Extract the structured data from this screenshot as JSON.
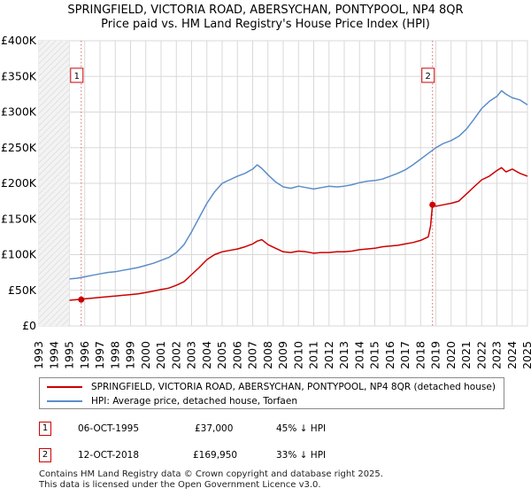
{
  "chart_data": {
    "type": "line",
    "title_line1": "SPRINGFIELD, VICTORIA ROAD, ABERSYCHAN, PONTYPOOL, NP4 8QR",
    "title_line2": "Price paid vs. HM Land Registry's House Price Index (HPI)",
    "xlim": [
      1993,
      2025
    ],
    "ylim": [
      0,
      400000
    ],
    "x_ticks": [
      1993,
      1994,
      1995,
      1996,
      1997,
      1998,
      1999,
      2000,
      2001,
      2002,
      2003,
      2004,
      2005,
      2006,
      2007,
      2008,
      2009,
      2010,
      2011,
      2012,
      2013,
      2014,
      2015,
      2016,
      2017,
      2018,
      2019,
      2020,
      2021,
      2022,
      2023,
      2024,
      2025
    ],
    "y_ticks": [
      {
        "value": 0,
        "label": "£0"
      },
      {
        "value": 50000,
        "label": "£50K"
      },
      {
        "value": 100000,
        "label": "£100K"
      },
      {
        "value": 150000,
        "label": "£150K"
      },
      {
        "value": 200000,
        "label": "£200K"
      },
      {
        "value": 250000,
        "label": "£250K"
      },
      {
        "value": 300000,
        "label": "£300K"
      },
      {
        "value": 350000,
        "label": "£350K"
      },
      {
        "value": 400000,
        "label": "£400K"
      }
    ],
    "grid": true,
    "data_start": 1995.0,
    "series": [
      {
        "name": "SPRINGFIELD, VICTORIA ROAD, ABERSYCHAN, PONTYPOOL, NP4 8QR (detached house)",
        "color": "#cc0000",
        "x": [
          1995.0,
          1995.5,
          1995.77,
          1996.0,
          1996.5,
          1997.0,
          1997.5,
          1998.0,
          1998.5,
          1999.0,
          1999.5,
          2000.0,
          2000.5,
          2001.0,
          2001.5,
          2002.0,
          2002.5,
          2003.0,
          2003.5,
          2004.0,
          2004.5,
          2005.0,
          2005.5,
          2006.0,
          2006.5,
          2007.0,
          2007.3,
          2007.6,
          2008.0,
          2008.5,
          2009.0,
          2009.5,
          2010.0,
          2010.5,
          2011.0,
          2011.5,
          2012.0,
          2012.5,
          2013.0,
          2013.5,
          2014.0,
          2014.5,
          2015.0,
          2015.5,
          2016.0,
          2016.5,
          2017.0,
          2017.5,
          2018.0,
          2018.5,
          2018.65,
          2018.78,
          2019.0,
          2019.5,
          2020.0,
          2020.5,
          2021.0,
          2021.5,
          2022.0,
          2022.5,
          2023.0,
          2023.3,
          2023.6,
          2024.0,
          2024.5,
          2025.0
        ],
        "y": [
          36000,
          37000,
          37000,
          38000,
          39000,
          40000,
          41000,
          42000,
          43000,
          44000,
          45000,
          47000,
          49000,
          51000,
          53000,
          57000,
          62000,
          72000,
          82000,
          93000,
          100000,
          104000,
          106000,
          108000,
          111000,
          115000,
          119000,
          121000,
          114000,
          109000,
          104000,
          103000,
          105000,
          104000,
          102000,
          103000,
          103000,
          104000,
          104000,
          105000,
          107000,
          108000,
          109000,
          111000,
          112000,
          113000,
          115000,
          117000,
          120000,
          125000,
          140000,
          169950,
          168000,
          170000,
          172000,
          175000,
          185000,
          195000,
          205000,
          210000,
          218000,
          222000,
          216000,
          220000,
          214000,
          210000
        ]
      },
      {
        "name": "HPI: Average price, detached house, Torfaen",
        "color": "#5b8dc9",
        "x": [
          1995.0,
          1995.5,
          1996.0,
          1996.5,
          1997.0,
          1997.5,
          1998.0,
          1998.5,
          1999.0,
          1999.5,
          2000.0,
          2000.5,
          2001.0,
          2001.5,
          2002.0,
          2002.5,
          2003.0,
          2003.5,
          2004.0,
          2004.5,
          2005.0,
          2005.5,
          2006.0,
          2006.5,
          2007.0,
          2007.3,
          2007.6,
          2008.0,
          2008.5,
          2009.0,
          2009.5,
          2010.0,
          2010.5,
          2011.0,
          2011.5,
          2012.0,
          2012.5,
          2013.0,
          2013.5,
          2014.0,
          2014.5,
          2015.0,
          2015.5,
          2016.0,
          2016.5,
          2017.0,
          2017.5,
          2018.0,
          2018.5,
          2019.0,
          2019.5,
          2020.0,
          2020.5,
          2021.0,
          2021.5,
          2022.0,
          2022.5,
          2023.0,
          2023.3,
          2023.6,
          2024.0,
          2024.5,
          2025.0
        ],
        "y": [
          66000,
          67000,
          69000,
          71000,
          73000,
          75000,
          76000,
          78000,
          80000,
          82000,
          85000,
          88000,
          92000,
          96000,
          103000,
          114000,
          132000,
          152000,
          172000,
          188000,
          200000,
          205000,
          210000,
          214000,
          220000,
          226000,
          221000,
          212000,
          202000,
          195000,
          193000,
          196000,
          194000,
          192000,
          194000,
          196000,
          195000,
          196000,
          198000,
          201000,
          203000,
          204000,
          206000,
          210000,
          214000,
          219000,
          226000,
          234000,
          242000,
          250000,
          256000,
          260000,
          266000,
          276000,
          290000,
          305000,
          315000,
          322000,
          330000,
          325000,
          320000,
          317000,
          310000
        ]
      }
    ],
    "annotations": [
      {
        "label": "1",
        "x": 1995.77,
        "y": 37000
      },
      {
        "label": "2",
        "x": 2018.78,
        "y": 169950
      }
    ]
  },
  "legend": {
    "items": [
      {
        "label": "SPRINGFIELD, VICTORIA ROAD, ABERSYCHAN, PONTYPOOL, NP4 8QR (detached house)",
        "color": "#cc0000"
      },
      {
        "label": "HPI: Average price, detached house, Torfaen",
        "color": "#5b8dc9"
      }
    ]
  },
  "transactions": [
    {
      "num": "1",
      "date": "06-OCT-1995",
      "price": "£37,000",
      "hpi": "45% ↓ HPI"
    },
    {
      "num": "2",
      "date": "12-OCT-2018",
      "price": "£169,950",
      "hpi": "33% ↓ HPI"
    }
  ],
  "footer": {
    "line1": "Contains HM Land Registry data © Crown copyright and database right 2025.",
    "line2": "This data is licensed under the Open Government Licence v3.0."
  }
}
